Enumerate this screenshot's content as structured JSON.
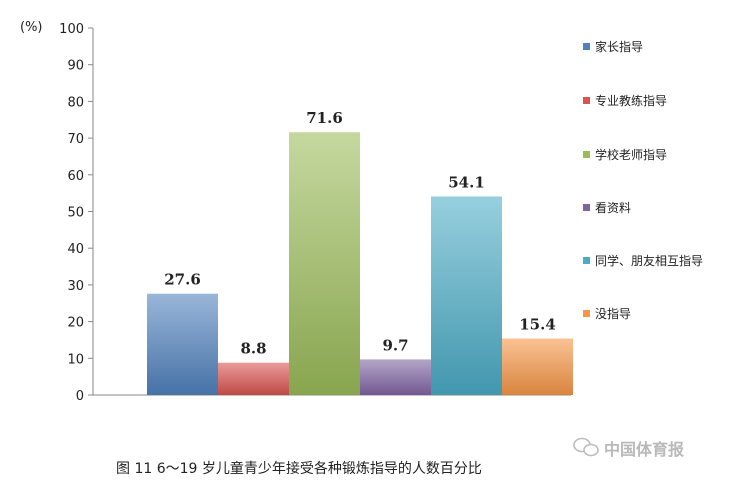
{
  "chart_data": {
    "type": "bar",
    "title": "图 11    6～19 岁儿童青少年接受各种锻炼指导的人数百分比",
    "ylabel": "(%)",
    "ylim": [
      0,
      100
    ],
    "yticks": [
      0,
      10,
      20,
      30,
      40,
      50,
      60,
      70,
      80,
      90,
      100
    ],
    "grid": false,
    "legend_position": "right",
    "series": [
      {
        "name": "家长指导",
        "value": 27.6,
        "label": "27.6",
        "color": "#4f81bd"
      },
      {
        "name": "专业教练指导",
        "value": 8.8,
        "label": "8.8",
        "color": "#d9534f"
      },
      {
        "name": "学校老师指导",
        "value": 71.6,
        "label": "71.6",
        "color": "#9bbb59"
      },
      {
        "name": "看资料",
        "value": 9.7,
        "label": "9.7",
        "color": "#8064a2"
      },
      {
        "name": "同学、朋友相互指导",
        "value": 54.1,
        "label": "54.1",
        "color": "#4bacc6"
      },
      {
        "name": "没指导",
        "value": 15.4,
        "label": "15.4",
        "color": "#f79646"
      }
    ]
  },
  "watermark": "中国体育报"
}
